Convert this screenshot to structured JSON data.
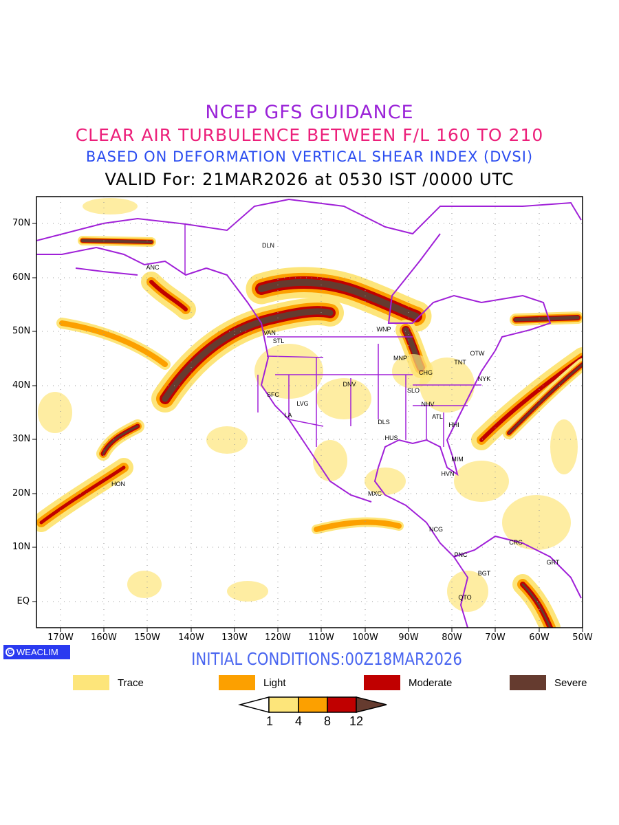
{
  "title": {
    "line1": "NCEP GFS GUIDANCE",
    "line2": "CLEAR AIR TURBULENCE BETWEEN F/L 160 TO 210",
    "line3": "BASED ON DEFORMATION VERTICAL SHEAR INDEX (DVSI)",
    "line4": "VALID For: 21MAR2026 at 0530 IST /0000 UTC"
  },
  "axes": {
    "lat_labels": [
      "70N",
      "60N",
      "50N",
      "40N",
      "30N",
      "20N",
      "10N",
      "EQ"
    ],
    "lon_labels": [
      "170W",
      "160W",
      "150W",
      "140W",
      "130W",
      "120W",
      "110W",
      "100W",
      "90W",
      "80W",
      "70W",
      "60W",
      "50W"
    ]
  },
  "cities": [
    "DLN",
    "ANC",
    "VAN",
    "STL",
    "WNP",
    "MNP",
    "OTW",
    "TNT",
    "CHG",
    "NYK",
    "DNV",
    "SLO",
    "SFC",
    "LVG",
    "NHV",
    "LA",
    "ATL",
    "DLS",
    "HHI",
    "HUS",
    "MIM",
    "HVN",
    "HON",
    "MXC",
    "NCG",
    "CRC",
    "PNC",
    "GRT",
    "BGT",
    "QTO"
  ],
  "logo": "WEACLIM",
  "initial_conditions": "INITIAL CONDITIONS:00Z18MAR2026",
  "legend": [
    {
      "label": "Trace",
      "color": "#fde57a"
    },
    {
      "label": "Light",
      "color": "#fca000"
    },
    {
      "label": "Moderate",
      "color": "#c00000"
    },
    {
      "label": "Severe",
      "color": "#653b2f"
    }
  ],
  "colorbar": {
    "ticks": [
      "1",
      "4",
      "8",
      "12"
    ]
  },
  "colors": {
    "coast": "#a020d8",
    "grid": "#999999"
  }
}
